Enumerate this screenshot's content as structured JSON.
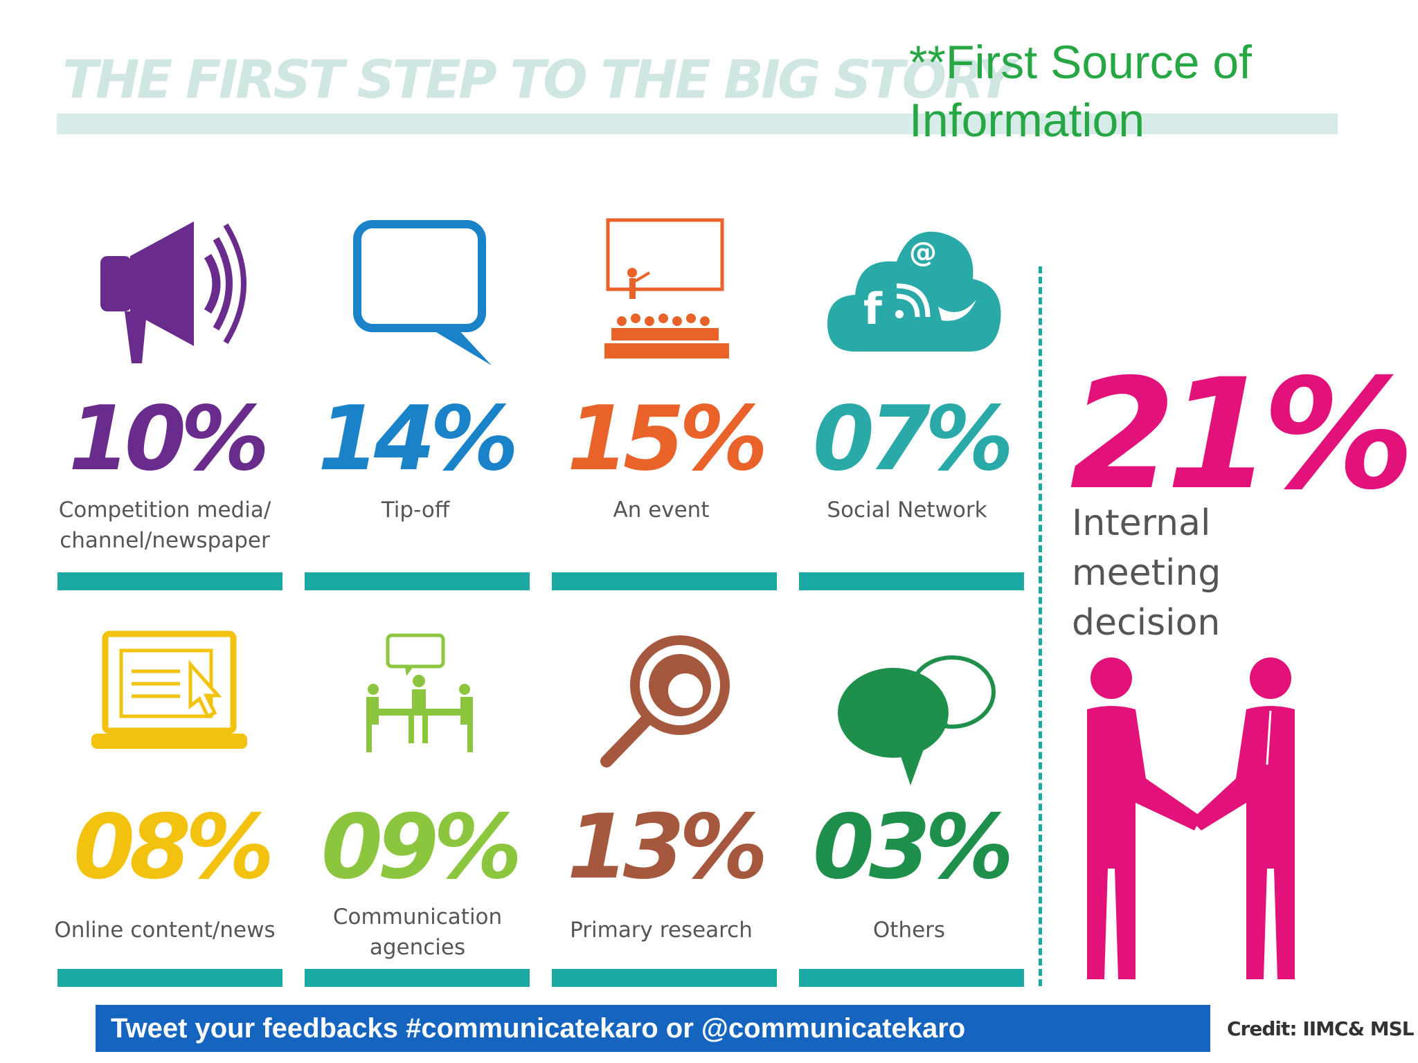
{
  "header": {
    "title": "THE FIRST STEP TO THE BIG STORY",
    "subtitle": "**First Source of Information"
  },
  "items": [
    {
      "value": "10%",
      "label": "Competition media/ channel/newspaper",
      "color": "#6a2c8c",
      "icon": "megaphone-icon"
    },
    {
      "value": "14%",
      "label": "Tip-off",
      "color": "#1a82c8",
      "icon": "speech-bubble-icon"
    },
    {
      "value": "15%",
      "label": "An event",
      "color": "#e8622a",
      "icon": "presentation-audience-icon"
    },
    {
      "value": "07%",
      "label": "Social Network",
      "color": "#2aa9a9",
      "icon": "social-cloud-icon"
    },
    {
      "value": "08%",
      "label": "Online content/news",
      "color": "#f2c20f",
      "icon": "laptop-cursor-icon"
    },
    {
      "value": "09%",
      "label": "Communication agencies",
      "color": "#8cc63f",
      "icon": "meeting-table-icon"
    },
    {
      "value": "13%",
      "label": "Primary research",
      "color": "#a5583d",
      "icon": "magnifier-icon"
    },
    {
      "value": "03%",
      "label": "Others",
      "color": "#1f8f4c",
      "icon": "chat-bubbles-icon"
    }
  ],
  "highlight": {
    "value": "21%",
    "label": "Internal meeting decision",
    "color": "#e2127a",
    "icon": "handshake-icon"
  },
  "footer": {
    "text": "Tweet your feedbacks #communicatekaro or @communicatekaro",
    "credit": "Credit: IIMC& MSL"
  }
}
